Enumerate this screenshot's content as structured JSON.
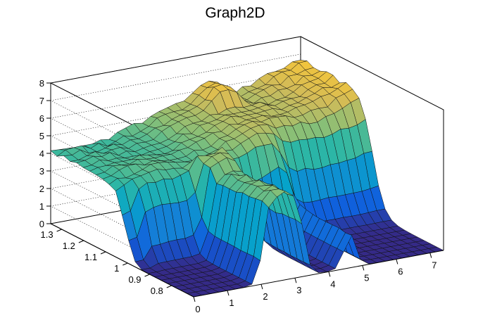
{
  "chart_data": {
    "type": "surface",
    "title": "Graph2D",
    "x_ticks": [
      "0",
      "1",
      "2",
      "3",
      "4",
      "5",
      "6",
      "7"
    ],
    "y_ticks": [
      "0.8",
      "0.9",
      "1",
      "1.1",
      "1.2",
      "1.3"
    ],
    "z_ticks": [
      "0",
      "1",
      "2",
      "3",
      "4",
      "5",
      "6",
      "7",
      "8"
    ],
    "xlim": [
      0,
      7.4
    ],
    "ylim": [
      0.7,
      1.35
    ],
    "zlim": [
      0,
      8
    ],
    "grid": true,
    "colormap": [
      "#352a87",
      "#0f5cdd",
      "#1481d6",
      "#06a4ca",
      "#2eb7a4",
      "#87bf77",
      "#d1bb59",
      "#fec832",
      "#f9fb0e"
    ],
    "grid_x_count": 31,
    "grid_y_count": 23
  }
}
